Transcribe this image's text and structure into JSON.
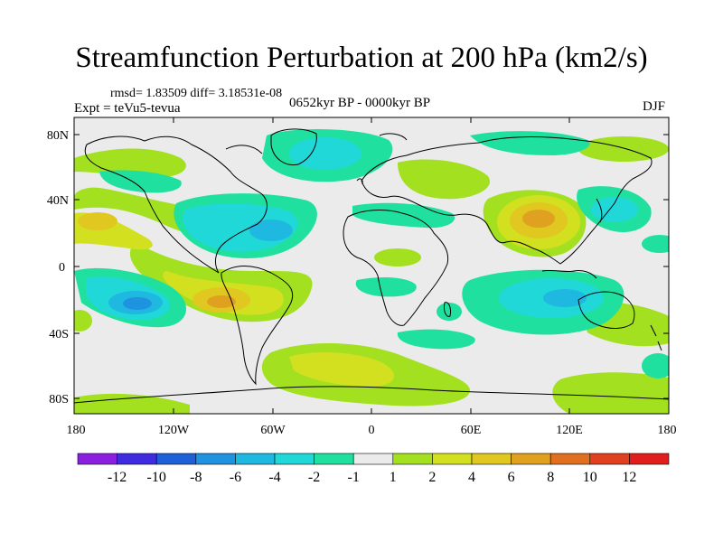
{
  "title": "Streamfunction Perturbation at 200 hPa (km2/s)",
  "stats_line": "rmsd= 1.83509 diff= 3.18531e-08",
  "experiment": "Expt = teVu5-tevua",
  "period": "0652kyr BP - 0000kyr BP",
  "season": "DJF",
  "lat_ticks": [
    "80N",
    "40N",
    "0",
    "40S",
    "80S"
  ],
  "lon_ticks": [
    "180",
    "120W",
    "60W",
    "0",
    "60E",
    "120E",
    "180"
  ],
  "colorbar": {
    "colors": [
      "#8a1fe0",
      "#3f2be0",
      "#1f5fd8",
      "#1f92e0",
      "#1fb8e0",
      "#20d8d8",
      "#20e0a0",
      "#ebebeb",
      "#a2e020",
      "#d2e020",
      "#e0c820",
      "#e0a020",
      "#e07020",
      "#e04020",
      "#e01e1e"
    ],
    "labels": [
      "-12",
      "-10",
      "-8",
      "-6",
      "-4",
      "-2",
      "-1",
      "1",
      "2",
      "4",
      "6",
      "8",
      "10",
      "12"
    ]
  }
}
